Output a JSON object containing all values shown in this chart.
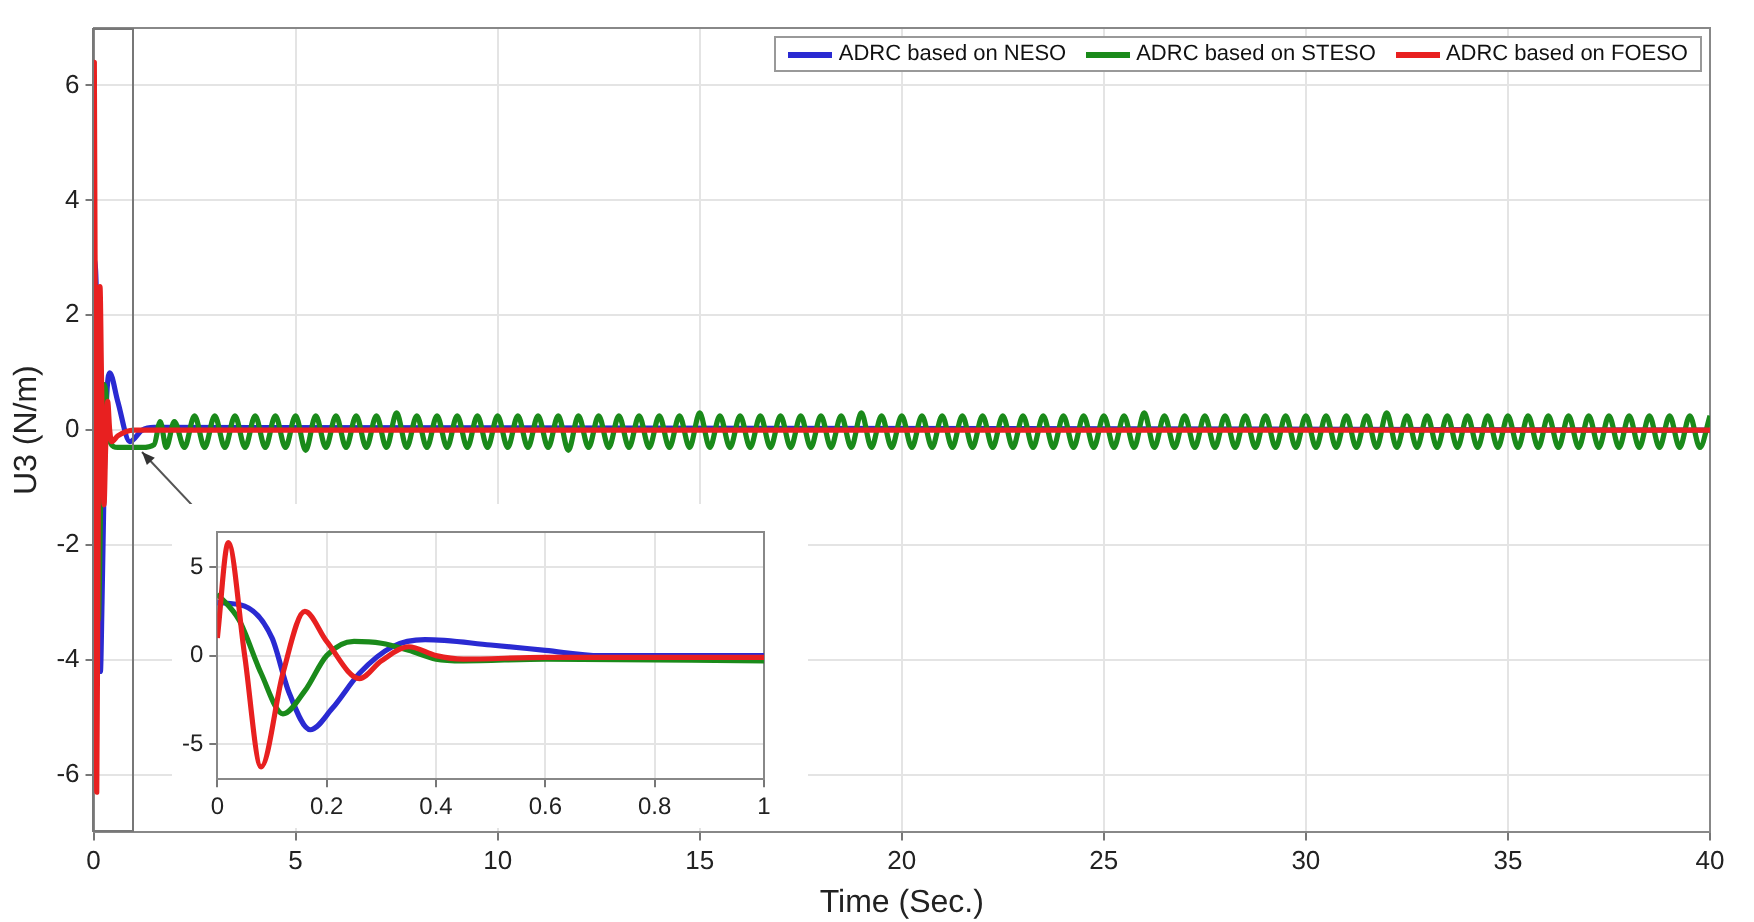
{
  "chart_data": [
    {
      "type": "line",
      "xlabel": "Time (Sec.)",
      "ylabel": "U3 (N/m)",
      "xlim": [
        0,
        40
      ],
      "xticks": [
        0,
        5,
        10,
        15,
        20,
        25,
        30,
        35,
        40
      ],
      "ylim": [
        -7,
        7
      ],
      "yticks": [
        -6,
        -4,
        -2,
        0,
        2,
        4,
        6
      ],
      "grid": true,
      "legend": "top right",
      "marker": "none",
      "line_style": "solid",
      "series": [
        {
          "name": "ADRC based on NESO",
          "color": "#2a2ad2",
          "x": [
            0,
            0.05,
            0.1,
            0.13,
            0.17,
            0.21,
            0.26,
            0.32,
            0.4,
            0.6,
            0.9,
            1.2,
            1.5,
            40
          ],
          "values": [
            3,
            2.8,
            1,
            -2,
            -4.2,
            -3,
            -1,
            0.5,
            1.0,
            0.5,
            -0.2,
            0,
            0.05,
            0
          ]
        },
        {
          "name": "ADRC based on STESO",
          "color": "#1a8a1a",
          "x": [
            0,
            0.04,
            0.08,
            0.12,
            0.16,
            0.2,
            0.25,
            0.3,
            0.4,
            0.6,
            1.2,
            1.5,
            1.65,
            1.8,
            2,
            2.25,
            2.5,
            2.75,
            3,
            3.25,
            3.5,
            3.75,
            4,
            4.25,
            4.5,
            4.75,
            5,
            5.25,
            5.5,
            5.75,
            6,
            6.25,
            6.5,
            6.75,
            7,
            7.25,
            7.5,
            7.75,
            8,
            8.25,
            8.5,
            8.75,
            9,
            9.25,
            9.5,
            9.75,
            10,
            10.25,
            10.5,
            10.75,
            11,
            11.25,
            11.5,
            11.75,
            12,
            12.25,
            12.5,
            12.75,
            13,
            13.25,
            13.5,
            13.75,
            14,
            14.25,
            14.5,
            14.75,
            15,
            15.25,
            15.5,
            15.75,
            16,
            16.25,
            16.5,
            16.75,
            17,
            17.25,
            17.5,
            17.75,
            18,
            18.25,
            18.5,
            18.75,
            19,
            19.25,
            19.5,
            19.75,
            20,
            20.25,
            20.5,
            20.75,
            21,
            21.25,
            21.5,
            21.75,
            22,
            22.25,
            22.5,
            22.75,
            23,
            23.25,
            23.5,
            23.75,
            24,
            24.25,
            24.5,
            24.75,
            25,
            25.25,
            25.5,
            25.75,
            26,
            26.25,
            26.5,
            26.75,
            27,
            27.25,
            27.5,
            27.75,
            28,
            28.25,
            28.5,
            28.75,
            29,
            29.25,
            29.5,
            29.75,
            30,
            30.25,
            30.5,
            30.75,
            31,
            31.25,
            31.5,
            31.75,
            32,
            32.25,
            32.5,
            32.75,
            33,
            33.25,
            33.5,
            33.75,
            34,
            34.25,
            34.5,
            34.75,
            35,
            35.25,
            35.5,
            35.75,
            36,
            36.25,
            36.5,
            36.75,
            37,
            37.25,
            37.5,
            37.75,
            38,
            38.25,
            38.5,
            38.75,
            39,
            39.25,
            39.5,
            39.75,
            40
          ],
          "values": [
            3.5,
            2,
            -1,
            -3.3,
            -2,
            0,
            0.8,
            0.7,
            -0.2,
            -0.3,
            -0.3,
            -0.25,
            0.15,
            -0.3,
            0.15,
            -0.3,
            0.25,
            -0.3,
            0.25,
            -0.3,
            0.25,
            -0.3,
            0.25,
            -0.3,
            0.25,
            -0.3,
            0.25,
            -0.35,
            0.25,
            -0.3,
            0.25,
            -0.3,
            0.25,
            -0.3,
            0.25,
            -0.3,
            0.3,
            -0.3,
            0.25,
            -0.3,
            0.25,
            -0.3,
            0.25,
            -0.3,
            0.25,
            -0.3,
            0.25,
            -0.3,
            0.25,
            -0.3,
            0.25,
            -0.3,
            0.25,
            -0.35,
            0.25,
            -0.3,
            0.25,
            -0.3,
            0.25,
            -0.3,
            0.25,
            -0.3,
            0.25,
            -0.3,
            0.25,
            -0.3,
            0.3,
            -0.3,
            0.25,
            -0.3,
            0.25,
            -0.3,
            0.25,
            -0.3,
            0.25,
            -0.3,
            0.25,
            -0.3,
            0.25,
            -0.3,
            0.25,
            -0.3,
            0.3,
            -0.3,
            0.25,
            -0.3,
            0.25,
            -0.3,
            0.25,
            -0.3,
            0.25,
            -0.3,
            0.25,
            -0.3,
            0.25,
            -0.3,
            0.25,
            -0.3,
            0.25,
            -0.3,
            0.25,
            -0.3,
            0.25,
            -0.3,
            0.25,
            -0.3,
            0.25,
            -0.3,
            0.25,
            -0.3,
            0.3,
            -0.3,
            0.25,
            -0.3,
            0.25,
            -0.3,
            0.25,
            -0.3,
            0.25,
            -0.3,
            0.25,
            -0.3,
            0.25,
            -0.3,
            0.25,
            -0.3,
            0.25,
            -0.3,
            0.25,
            -0.3,
            0.25,
            -0.3,
            0.25,
            -0.3,
            0.3,
            -0.3,
            0.25,
            -0.3,
            0.25,
            -0.3,
            0.25,
            -0.3,
            0.25,
            -0.3,
            0.25,
            -0.3,
            0.25,
            -0.3,
            0.25,
            -0.3,
            0.25,
            -0.3,
            0.25,
            -0.3,
            0.25,
            -0.3,
            0.25,
            -0.3,
            0.25,
            -0.3,
            0.25,
            -0.3,
            0.25,
            -0.3,
            0.25,
            -0.3,
            0.25
          ]
        },
        {
          "name": "ADRC based on FOESO",
          "color": "#e82020",
          "x": [
            0,
            0.02,
            0.05,
            0.08,
            0.12,
            0.16,
            0.2,
            0.26,
            0.3,
            0.35,
            0.4,
            0.45,
            0.6,
            1,
            40
          ],
          "values": [
            1,
            6.4,
            0,
            -6.3,
            -1,
            2.5,
            0.8,
            -1.3,
            -0.3,
            0.5,
            0,
            -0.2,
            -0.1,
            0,
            0
          ]
        }
      ]
    },
    {
      "type": "line",
      "xlim": [
        0,
        1
      ],
      "xticks": [
        0,
        0.2,
        0.4,
        0.6,
        0.8,
        1
      ],
      "ylim": [
        -7,
        7
      ],
      "yticks": [
        -5,
        0,
        5
      ],
      "grid": true,
      "marker": "none",
      "line_style": "solid",
      "series": [
        {
          "color": "#2a2ad2",
          "x": [
            0,
            0.05,
            0.1,
            0.13,
            0.17,
            0.21,
            0.26,
            0.32,
            0.38,
            0.5,
            0.6,
            0.7,
            1
          ],
          "values": [
            3,
            2.8,
            1,
            -2,
            -4.2,
            -3,
            -1,
            0.5,
            0.9,
            0.6,
            0.3,
            0,
            0
          ]
        },
        {
          "color": "#1a8a1a",
          "x": [
            0,
            0.04,
            0.08,
            0.12,
            0.16,
            0.2,
            0.25,
            0.3,
            0.35,
            0.4,
            0.45,
            0.6,
            1
          ],
          "values": [
            3.5,
            2,
            -1,
            -3.3,
            -2,
            0,
            0.8,
            0.7,
            0.3,
            -0.2,
            -0.3,
            -0.2,
            -0.3
          ]
        },
        {
          "color": "#e82020",
          "x": [
            0,
            0.02,
            0.05,
            0.08,
            0.12,
            0.16,
            0.2,
            0.26,
            0.3,
            0.35,
            0.4,
            0.45,
            0.6,
            1
          ],
          "values": [
            1,
            6.4,
            0,
            -6.3,
            -1,
            2.5,
            0.8,
            -1.3,
            -0.3,
            0.5,
            0,
            -0.2,
            -0.1,
            -0.1
          ]
        }
      ]
    }
  ]
}
